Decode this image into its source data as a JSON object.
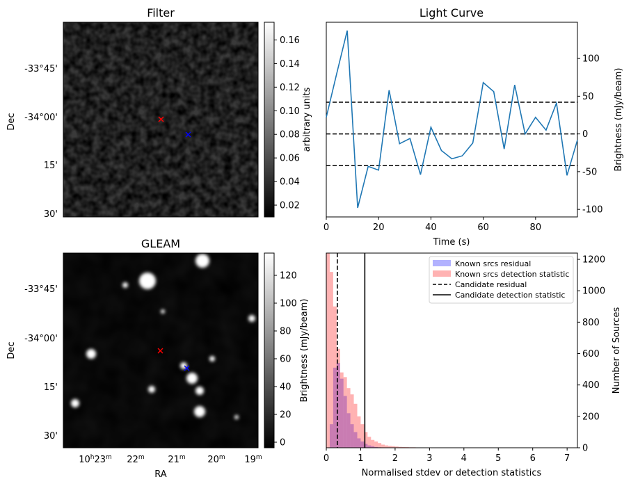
{
  "chart_data": [
    {
      "type": "heatmap",
      "title": "Filter",
      "ylabel": "Dec",
      "dec_tick_labels": [
        "-33°45'",
        "-34°00'",
        "15'",
        "30'"
      ],
      "colorbar": {
        "label": "arbitrary units",
        "ticks": [
          0.02,
          0.04,
          0.06,
          0.08,
          0.1,
          0.12,
          0.14,
          0.16
        ],
        "tick_labels": [
          "0.02",
          "0.04",
          "0.06",
          "0.08",
          "0.10",
          "0.12",
          "0.14",
          "0.16"
        ],
        "range": [
          0.01,
          0.175
        ],
        "colormap": "gray"
      },
      "markers": [
        {
          "symbol": "x",
          "color": "#ff0000"
        },
        {
          "symbol": "x",
          "color": "#0000ff"
        }
      ]
    },
    {
      "type": "line",
      "title": "Light Curve",
      "xlabel": "Time (s)",
      "ylabel": "Brightness (mJy/beam)",
      "xlim": [
        0,
        96
      ],
      "ylim": [
        -110,
        148
      ],
      "xticks": [
        0,
        20,
        40,
        60,
        80
      ],
      "yticks": [
        -100,
        -50,
        0,
        50,
        100
      ],
      "yaxis_side": "right",
      "series": [
        {
          "color": "#1f77b4",
          "x": [
            0,
            4,
            8,
            12,
            16,
            20,
            24,
            28,
            32,
            36,
            40,
            44,
            48,
            52,
            56,
            60,
            64,
            68,
            72,
            76,
            80,
            84,
            88,
            92,
            96
          ],
          "values": [
            22,
            80,
            137,
            -98,
            -43,
            -48,
            58,
            -13,
            -6,
            -54,
            9,
            -22,
            -33,
            -29,
            -12,
            68,
            56,
            -20,
            65,
            0,
            22,
            5,
            41,
            -55,
            -8
          ]
        }
      ],
      "hlines": [
        {
          "y": 42,
          "style": "dashed",
          "color": "#000000"
        },
        {
          "y": 0,
          "style": "dashed",
          "color": "#000000"
        },
        {
          "y": -42,
          "style": "dashed",
          "color": "#000000"
        }
      ]
    },
    {
      "type": "heatmap",
      "title": "GLEAM",
      "xlabel": "RA",
      "ylabel": "Dec",
      "dec_tick_labels": [
        "-33°45'",
        "-34°00'",
        "15'",
        "30'"
      ],
      "ra_tick_labels": [
        {
          "base": "10",
          "h": "h",
          "m_val": "23",
          "m": "m"
        },
        {
          "base": "22",
          "m": "m"
        },
        {
          "base": "21",
          "m": "m"
        },
        {
          "base": "20",
          "m": "m"
        },
        {
          "base": "19",
          "m": "m"
        }
      ],
      "colorbar": {
        "label": "Brightness (mJy/beam)",
        "ticks": [
          0,
          20,
          40,
          60,
          80,
          100,
          120
        ],
        "tick_labels": [
          "0",
          "20",
          "40",
          "60",
          "80",
          "100",
          "120"
        ],
        "range": [
          -4,
          136
        ],
        "colormap": "gray"
      },
      "markers": [
        {
          "symbol": "x",
          "color": "#ff0000"
        },
        {
          "symbol": "x",
          "color": "#0000ff"
        }
      ]
    },
    {
      "type": "bar",
      "subtype": "histogram",
      "xlabel": "Normalised stdev or detection statistics",
      "ylabel": "Number of Sources",
      "yaxis_side": "right",
      "xlim": [
        0,
        7.3
      ],
      "ylim": [
        0,
        1240
      ],
      "xticks": [
        0,
        1,
        2,
        3,
        4,
        5,
        6,
        7
      ],
      "yticks": [
        0,
        200,
        400,
        600,
        800,
        1000,
        1200
      ],
      "legend_position": "top-right",
      "bin_width": 0.1,
      "series": [
        {
          "name": "Known srcs residual",
          "color": "#0000ff",
          "opacity": 0.3,
          "bin_start": 0,
          "values": [
            0,
            150,
            510,
            540,
            440,
            330,
            220,
            150,
            100,
            60,
            40,
            25,
            15,
            10,
            5,
            3,
            2
          ]
        },
        {
          "name": "Known srcs detection statistic",
          "color": "#ff0000",
          "opacity": 0.3,
          "bin_start": 0,
          "values": [
            1240,
            1120,
            900,
            630,
            480,
            450,
            380,
            340,
            280,
            200,
            150,
            100,
            70,
            50,
            40,
            30,
            20,
            15,
            12,
            10,
            8,
            6,
            5,
            4,
            3,
            3,
            2,
            2,
            2,
            1,
            1,
            1,
            1,
            1,
            1,
            1,
            1,
            1,
            1,
            1,
            1,
            1,
            1,
            1,
            0,
            0,
            0,
            0,
            0,
            0,
            0,
            0,
            0,
            0,
            0,
            0,
            0,
            0,
            0,
            0,
            0,
            0,
            0,
            0,
            0,
            0,
            1,
            0,
            0,
            0
          ]
        }
      ],
      "vlines": [
        {
          "name": "Candidate residual",
          "x": 0.32,
          "style": "dashed",
          "color": "#000000"
        },
        {
          "name": "Candidate detection statistic",
          "x": 1.12,
          "style": "solid",
          "color": "#000000"
        }
      ]
    }
  ]
}
